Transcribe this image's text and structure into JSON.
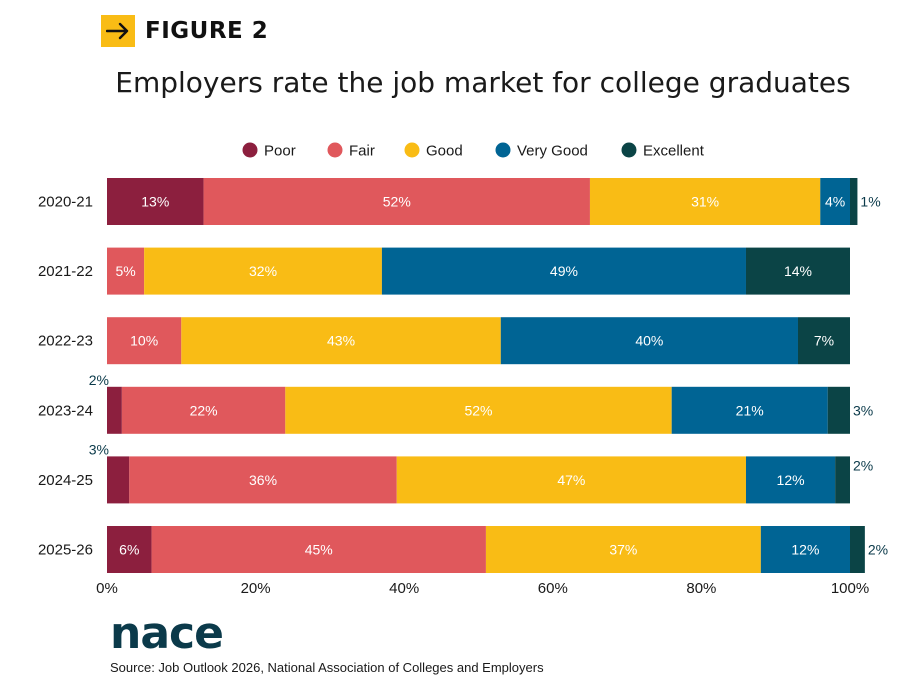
{
  "header": {
    "figure_label": "FIGURE 2",
    "arrow_icon": "arrow-right-icon",
    "accent": "#f9bc15"
  },
  "logo": {
    "text": "nace"
  },
  "footer": {
    "source": "Source: Job Outlook 2026, National Association of Colleges and Employers"
  },
  "chart_data": {
    "type": "bar",
    "orientation": "horizontal",
    "stacked": true,
    "title": "Employers rate the job market for college graduates",
    "categories": [
      "2020-21",
      "2021-22",
      "2022-23",
      "2023-24",
      "2024-25",
      "2025-26"
    ],
    "series": [
      {
        "name": "Poor",
        "color": "#8c1f3e",
        "values": [
          13,
          0,
          0,
          2,
          3,
          6
        ]
      },
      {
        "name": "Fair",
        "color": "#e0585c",
        "values": [
          52,
          5,
          10,
          22,
          36,
          45
        ]
      },
      {
        "name": "Good",
        "color": "#f9bc15",
        "values": [
          31,
          32,
          43,
          52,
          47,
          37
        ]
      },
      {
        "name": "Very Good",
        "color": "#006494",
        "values": [
          4,
          49,
          40,
          21,
          12,
          12
        ]
      },
      {
        "name": "Excellent",
        "color": "#0b4446",
        "values": [
          1,
          14,
          7,
          3,
          2,
          2
        ]
      }
    ],
    "xlim": [
      0,
      100
    ],
    "x_ticks": [
      "0%",
      "20%",
      "40%",
      "60%",
      "80%",
      "100%"
    ],
    "legend_position": "top",
    "grid": false
  }
}
